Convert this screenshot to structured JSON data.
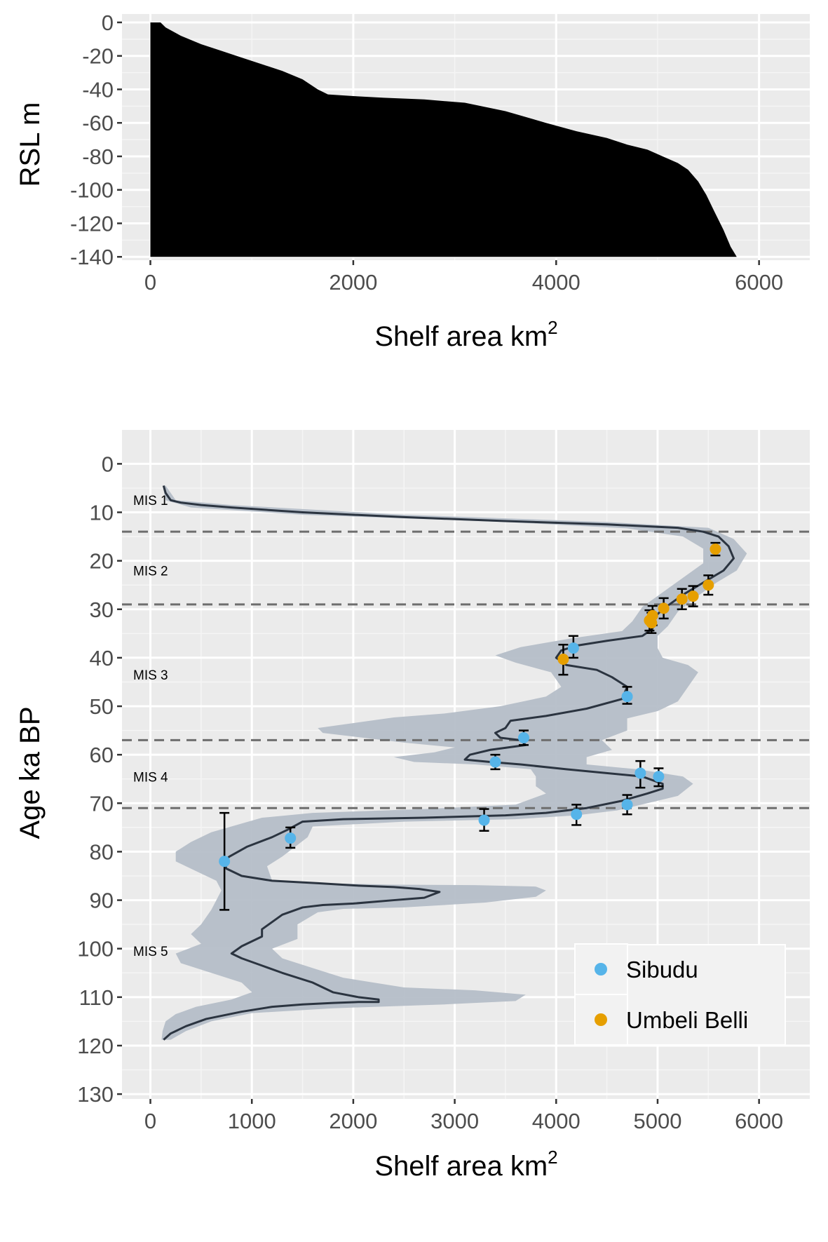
{
  "colors": {
    "panel_bg": "#ebebeb",
    "grid_major": "#ffffff",
    "area_fill": "#000000",
    "ribbon": "#b3bcc7",
    "line": "#2b3440",
    "sibudu": "#56b4e9",
    "umbeli": "#e69f00",
    "hline": "#6e6e6e"
  },
  "chart_data": [
    {
      "type": "area",
      "xlabel_text": "Shelf area km",
      "xlabel_sup": "2",
      "ylabel": "RSL m",
      "xlim": [
        -280,
        6500
      ],
      "ylim": [
        -142,
        5
      ],
      "x_ticks": [
        0,
        2000,
        4000,
        6000
      ],
      "x_tick_labels": [
        "0",
        "2000",
        "4000",
        "6000"
      ],
      "y_ticks": [
        0,
        -20,
        -40,
        -60,
        -80,
        -100,
        -120,
        -140
      ],
      "y_tick_labels": [
        "0",
        "-20",
        "-40",
        "-60",
        "-80",
        "-100",
        "-120",
        "-140"
      ],
      "grid": true,
      "points": [
        [
          0,
          0
        ],
        [
          100,
          0
        ],
        [
          150,
          -3
        ],
        [
          300,
          -8
        ],
        [
          500,
          -13
        ],
        [
          700,
          -17
        ],
        [
          900,
          -21
        ],
        [
          1100,
          -25
        ],
        [
          1300,
          -29
        ],
        [
          1500,
          -34
        ],
        [
          1650,
          -40
        ],
        [
          1750,
          -43
        ],
        [
          2000,
          -44
        ],
        [
          2300,
          -45
        ],
        [
          2700,
          -46
        ],
        [
          3100,
          -48
        ],
        [
          3500,
          -53
        ],
        [
          3900,
          -60
        ],
        [
          4200,
          -65
        ],
        [
          4500,
          -69
        ],
        [
          4700,
          -73
        ],
        [
          4900,
          -76
        ],
        [
          5050,
          -80
        ],
        [
          5200,
          -84
        ],
        [
          5300,
          -88
        ],
        [
          5400,
          -95
        ],
        [
          5480,
          -103
        ],
        [
          5560,
          -113
        ],
        [
          5650,
          -124
        ],
        [
          5720,
          -134
        ],
        [
          5780,
          -140
        ],
        [
          5800,
          -140
        ]
      ]
    },
    {
      "type": "line",
      "xlabel_text": "Shelf area km",
      "xlabel_sup": "2",
      "ylabel": "Age ka BP",
      "xlim": [
        -280,
        6500
      ],
      "ylim": [
        131,
        -7
      ],
      "x_ticks": [
        0,
        1000,
        2000,
        3000,
        4000,
        5000,
        6000
      ],
      "x_tick_labels": [
        "0",
        "1000",
        "2000",
        "3000",
        "4000",
        "5000",
        "6000"
      ],
      "y_ticks": [
        0,
        10,
        20,
        30,
        40,
        50,
        60,
        70,
        80,
        90,
        100,
        110,
        120,
        130
      ],
      "y_tick_labels": [
        "0",
        "10",
        "20",
        "30",
        "40",
        "50",
        "60",
        "70",
        "80",
        "90",
        "100",
        "110",
        "120",
        "130"
      ],
      "grid": true,
      "mis_boundaries": [
        14,
        29,
        57,
        71
      ],
      "mis_labels": [
        {
          "text": "MIS 1",
          "y": 7.5
        },
        {
          "text": "MIS 2",
          "y": 22
        },
        {
          "text": "MIS 3",
          "y": 43.5
        },
        {
          "text": "MIS 4",
          "y": 64.5
        },
        {
          "text": "MIS 5",
          "y": 100.5
        }
      ],
      "line": [
        [
          130,
          4.5
        ],
        [
          150,
          6
        ],
        [
          200,
          7.5
        ],
        [
          300,
          8
        ],
        [
          500,
          8.5
        ],
        [
          800,
          9
        ],
        [
          1500,
          10
        ],
        [
          2500,
          11
        ],
        [
          3500,
          11.8
        ],
        [
          4500,
          12.5
        ],
        [
          5200,
          13.2
        ],
        [
          5450,
          14
        ],
        [
          5600,
          15
        ],
        [
          5700,
          17
        ],
        [
          5750,
          19.5
        ],
        [
          5650,
          22
        ],
        [
          5450,
          24.5
        ],
        [
          5250,
          27
        ],
        [
          5050,
          30
        ],
        [
          4950,
          32
        ],
        [
          4950,
          34
        ],
        [
          4850,
          35.5
        ],
        [
          4500,
          36.5
        ],
        [
          4200,
          37.5
        ],
        [
          4050,
          38.5
        ],
        [
          4000,
          40
        ],
        [
          4100,
          41.5
        ],
        [
          4400,
          42.5
        ],
        [
          4550,
          44
        ],
        [
          4700,
          46
        ],
        [
          4650,
          48.5
        ],
        [
          4300,
          50.5
        ],
        [
          3900,
          52
        ],
        [
          3550,
          53
        ],
        [
          3500,
          54.5
        ],
        [
          3400,
          55.5
        ],
        [
          3450,
          56.5
        ],
        [
          3650,
          57
        ],
        [
          3700,
          58
        ],
        [
          3350,
          59
        ],
        [
          3150,
          60
        ],
        [
          3100,
          61
        ],
        [
          3350,
          61.5
        ],
        [
          3650,
          62
        ],
        [
          4100,
          63
        ],
        [
          4850,
          64.5
        ],
        [
          5050,
          66
        ],
        [
          5050,
          67
        ],
        [
          4900,
          68
        ],
        [
          4650,
          69.5
        ],
        [
          4300,
          71
        ],
        [
          3900,
          72
        ],
        [
          3500,
          72.5
        ],
        [
          2700,
          73
        ],
        [
          1900,
          73.3
        ],
        [
          1500,
          73.8
        ],
        [
          1350,
          75.5
        ],
        [
          1200,
          77
        ],
        [
          950,
          79
        ],
        [
          780,
          81
        ],
        [
          720,
          82
        ],
        [
          750,
          83.5
        ],
        [
          900,
          85
        ],
        [
          1200,
          86
        ],
        [
          1650,
          86.5
        ],
        [
          2050,
          87
        ],
        [
          2400,
          87.3
        ],
        [
          2650,
          87.7
        ],
        [
          2850,
          88.3
        ],
        [
          2700,
          89.5
        ],
        [
          2400,
          90
        ],
        [
          2000,
          90.7
        ],
        [
          1700,
          91
        ],
        [
          1500,
          91.5
        ],
        [
          1300,
          93
        ],
        [
          1100,
          96
        ],
        [
          1100,
          97.5
        ],
        [
          900,
          99.5
        ],
        [
          800,
          101
        ],
        [
          900,
          102
        ],
        [
          1100,
          103.5
        ],
        [
          1300,
          105
        ],
        [
          1600,
          107
        ],
        [
          1800,
          109
        ],
        [
          2050,
          110
        ],
        [
          2250,
          110.5
        ],
        [
          2250,
          111
        ],
        [
          2050,
          111
        ],
        [
          1800,
          111.2
        ],
        [
          1500,
          111.5
        ],
        [
          1200,
          112
        ],
        [
          900,
          113
        ],
        [
          550,
          114.5
        ],
        [
          350,
          116
        ],
        [
          200,
          117.5
        ],
        [
          130,
          118.8
        ]
      ],
      "ribbon_upper": [
        [
          150,
          4.5
        ],
        [
          250,
          7.5
        ],
        [
          800,
          8.5
        ],
        [
          2500,
          10.5
        ],
        [
          4500,
          12
        ],
        [
          5500,
          13.2
        ],
        [
          5750,
          15.5
        ],
        [
          5880,
          18.5
        ],
        [
          5780,
          22
        ],
        [
          5580,
          24.5
        ],
        [
          5380,
          27.5
        ],
        [
          5200,
          30.5
        ],
        [
          5100,
          33.5
        ],
        [
          5000,
          35.5
        ],
        [
          5000,
          38
        ],
        [
          5050,
          40
        ],
        [
          5300,
          41.5
        ],
        [
          5400,
          43
        ],
        [
          5300,
          46
        ],
        [
          5200,
          49
        ],
        [
          5000,
          51
        ],
        [
          4700,
          52.5
        ],
        [
          4700,
          55
        ],
        [
          4450,
          57
        ],
        [
          4550,
          59
        ],
        [
          4300,
          60.5
        ],
        [
          4300,
          62
        ],
        [
          4800,
          63
        ],
        [
          5250,
          64.5
        ],
        [
          5350,
          66
        ],
        [
          5200,
          68.5
        ],
        [
          4900,
          70
        ],
        [
          4600,
          71.5
        ],
        [
          4200,
          72.5
        ],
        [
          3600,
          73.3
        ],
        [
          2500,
          73.8
        ],
        [
          1600,
          74.8
        ],
        [
          1550,
          77
        ],
        [
          1300,
          81
        ],
        [
          1150,
          83
        ],
        [
          1200,
          86
        ],
        [
          1700,
          86.5
        ],
        [
          2400,
          86.8
        ],
        [
          3200,
          86.9
        ],
        [
          3800,
          87.2
        ],
        [
          3900,
          88
        ],
        [
          3800,
          89.3
        ],
        [
          3300,
          90.5
        ],
        [
          2500,
          91.5
        ],
        [
          1900,
          91.8
        ],
        [
          1650,
          92.5
        ],
        [
          1450,
          95
        ],
        [
          1450,
          98
        ],
        [
          1200,
          100
        ],
        [
          1300,
          102
        ],
        [
          1600,
          104
        ],
        [
          1900,
          106
        ],
        [
          2500,
          108
        ],
        [
          3200,
          108.6
        ],
        [
          3700,
          109.5
        ],
        [
          3600,
          110.8
        ],
        [
          2900,
          111.5
        ],
        [
          1800,
          112.3
        ],
        [
          1000,
          113.3
        ],
        [
          600,
          115
        ],
        [
          350,
          117
        ],
        [
          200,
          118.8
        ]
      ],
      "ribbon_lower": [
        [
          120,
          4.5
        ],
        [
          150,
          7.5
        ],
        [
          400,
          9
        ],
        [
          1500,
          10.5
        ],
        [
          3500,
          12
        ],
        [
          4700,
          13.3
        ],
        [
          5250,
          15
        ],
        [
          5450,
          17.5
        ],
        [
          5450,
          20.5
        ],
        [
          5250,
          23.5
        ],
        [
          5050,
          26.5
        ],
        [
          4850,
          29.5
        ],
        [
          4750,
          32.5
        ],
        [
          4650,
          34.5
        ],
        [
          4150,
          36
        ],
        [
          3650,
          37.8
        ],
        [
          3400,
          39.5
        ],
        [
          3600,
          41
        ],
        [
          3950,
          43
        ],
        [
          4050,
          46
        ],
        [
          3900,
          48
        ],
        [
          3450,
          50
        ],
        [
          2900,
          51.5
        ],
        [
          2400,
          52.3
        ],
        [
          1650,
          54.5
        ],
        [
          1700,
          55.5
        ],
        [
          2500,
          57.5
        ],
        [
          3000,
          58.5
        ],
        [
          2800,
          59.5
        ],
        [
          2400,
          60.5
        ],
        [
          2600,
          61.5
        ],
        [
          3200,
          62
        ],
        [
          3750,
          63
        ],
        [
          3800,
          64.5
        ],
        [
          3800,
          66.5
        ],
        [
          3900,
          68
        ],
        [
          3600,
          70.3
        ],
        [
          2700,
          71.2
        ],
        [
          1600,
          72
        ],
        [
          1100,
          73
        ],
        [
          600,
          76
        ],
        [
          400,
          78
        ],
        [
          250,
          80
        ],
        [
          250,
          82
        ],
        [
          450,
          84
        ],
        [
          650,
          86
        ],
        [
          700,
          88
        ],
        [
          650,
          90
        ],
        [
          600,
          92
        ],
        [
          500,
          95
        ],
        [
          400,
          97
        ],
        [
          500,
          99
        ],
        [
          250,
          101
        ],
        [
          300,
          103
        ],
        [
          600,
          105
        ],
        [
          900,
          107
        ],
        [
          1000,
          109
        ],
        [
          800,
          110.5
        ],
        [
          450,
          112
        ],
        [
          250,
          113.5
        ],
        [
          150,
          115
        ],
        [
          120,
          117
        ],
        [
          110,
          118.8
        ]
      ],
      "series": [
        {
          "name": "Sibudu",
          "color": "#56b4e9",
          "points": [
            {
              "x": 4170,
              "y": 38,
              "ymin": 35.5,
              "ymax": 40
            },
            {
              "x": 4700,
              "y": 48,
              "ymin": 46,
              "ymax": 49.5
            },
            {
              "x": 3680,
              "y": 56.5,
              "ymin": 55,
              "ymax": 58
            },
            {
              "x": 3400,
              "y": 61.5,
              "ymin": 60,
              "ymax": 63
            },
            {
              "x": 4830,
              "y": 63.8,
              "ymin": 61.3,
              "ymax": 66.8
            },
            {
              "x": 5010,
              "y": 64.5,
              "ymin": 62.8,
              "ymax": 66.5
            },
            {
              "x": 4700,
              "y": 70.3,
              "ymin": 68.3,
              "ymax": 72.3
            },
            {
              "x": 4200,
              "y": 72.3,
              "ymin": 70.3,
              "ymax": 74.5
            },
            {
              "x": 3290,
              "y": 73.5,
              "ymin": 71.2,
              "ymax": 75.7
            },
            {
              "x": 1380,
              "y": 77.2,
              "ymin": 75,
              "ymax": 79.2
            },
            {
              "x": 730,
              "y": 82,
              "ymin": 72,
              "ymax": 92
            }
          ]
        },
        {
          "name": "Umbeli Belli",
          "color": "#e69f00",
          "points": [
            {
              "x": 5570,
              "y": 17.6,
              "ymin": 16.3,
              "ymax": 18.9
            },
            {
              "x": 5500,
              "y": 25,
              "ymin": 23,
              "ymax": 27
            },
            {
              "x": 5350,
              "y": 27.3,
              "ymin": 25.2,
              "ymax": 29.4
            },
            {
              "x": 5240,
              "y": 27.9,
              "ymin": 25.8,
              "ymax": 30
            },
            {
              "x": 5060,
              "y": 29.8,
              "ymin": 27.7,
              "ymax": 31.9
            },
            {
              "x": 4950,
              "y": 31.3,
              "ymin": 29.3,
              "ymax": 33.3
            },
            {
              "x": 4920,
              "y": 32.3,
              "ymin": 30.2,
              "ymax": 34.4
            },
            {
              "x": 4940,
              "y": 32.8,
              "ymin": 30.7,
              "ymax": 34.9
            },
            {
              "x": 4070,
              "y": 40.3,
              "ymin": 37.3,
              "ymax": 43.5
            }
          ]
        }
      ],
      "legend_position": "bottom-right"
    }
  ]
}
